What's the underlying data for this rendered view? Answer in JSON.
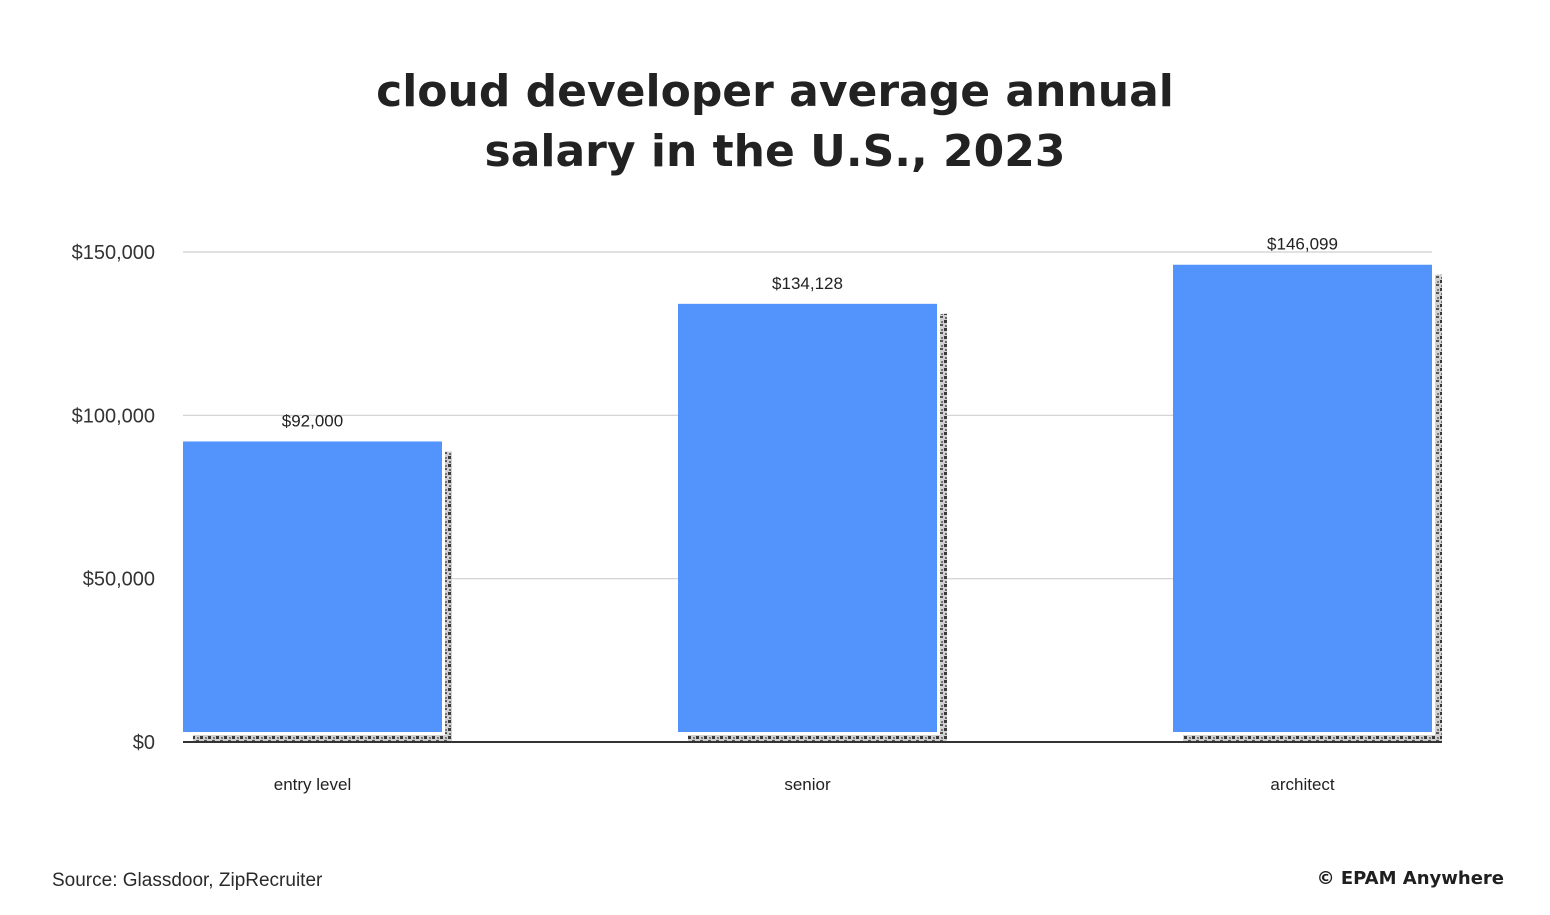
{
  "chart_data": {
    "type": "bar",
    "title_lines": [
      "cloud developer average annual",
      "salary in the U.S., 2023"
    ],
    "categories": [
      "entry level",
      "senior",
      "architect"
    ],
    "values": [
      92000,
      134128,
      146099
    ],
    "value_labels": [
      "$92,000",
      "$134,128",
      "$146,099"
    ],
    "y_ticks": [
      0,
      50000,
      100000,
      150000
    ],
    "y_tick_labels": [
      "$0",
      "$50,000",
      "$100,000",
      "$150,000"
    ],
    "ylim": [
      0,
      150000
    ],
    "grid": true,
    "bar_color": "#5294fc"
  },
  "footer": {
    "source": "Source: Glassdoor, ZipRecruiter",
    "brand": "© EPAM Anywhere"
  }
}
